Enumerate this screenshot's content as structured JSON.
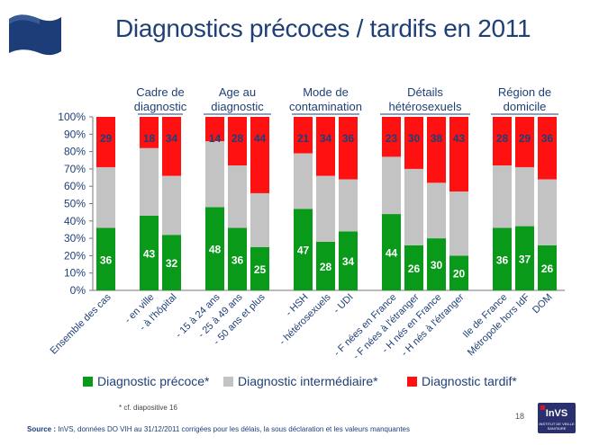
{
  "slide": {
    "title": "Diagnostics précoces / tardifs en 2011",
    "footnote": "* cf. diapositive 16",
    "source_label": "Source :",
    "source_text": " InVS, données DO VIH au 31/12/2011 corrigées pour les délais, la sous déclaration et les valeurs manquantes",
    "page_number": "18",
    "logo_text": "InVS",
    "logo_subtext": "INSTITUT DE VEILLE SANITAIRE"
  },
  "legend": [
    {
      "label": "Diagnostic précoce*",
      "color": "#0a9a1a"
    },
    {
      "label": "Diagnostic intermédiaire*",
      "color": "#c3c3c3"
    },
    {
      "label": "Diagnostic tardif*",
      "color": "#ff1111"
    }
  ],
  "chart_data": {
    "type": "bar",
    "stacked": true,
    "normalized": true,
    "ylim": [
      0,
      100
    ],
    "y_ticks": [
      "0%",
      "10%",
      "20%",
      "30%",
      "40%",
      "50%",
      "60%",
      "70%",
      "80%",
      "90%",
      "100%"
    ],
    "grid": false,
    "groups": [
      {
        "label": "",
        "categories": [
          "Ensemble des cas"
        ]
      },
      {
        "label": "Cadre de diagnostic",
        "categories": [
          "- en ville",
          "- à l'hôpital"
        ]
      },
      {
        "label": "Age au diagnostic",
        "categories": [
          "- 15 à 24 ans",
          "- 25 à 49 ans",
          "- 50 ans et plus"
        ]
      },
      {
        "label": "Mode de contamination",
        "categories": [
          "- HSH",
          "- hétérosexuels",
          "- UDI"
        ]
      },
      {
        "label": "Détails hétérosexuels",
        "categories": [
          "- F nées en France",
          "- F nées à l'étranger",
          "- H nés en France",
          "- H nés à l'étranger"
        ]
      },
      {
        "label": "Région de domicile",
        "categories": [
          "Ile de France",
          "Métropole hors IdF",
          "DOM"
        ]
      }
    ],
    "series": [
      {
        "name": "Diagnostic précoce*",
        "color": "#0a9a1a",
        "values": [
          36,
          43,
          32,
          48,
          36,
          25,
          47,
          28,
          34,
          44,
          26,
          30,
          20,
          36,
          37,
          26
        ]
      },
      {
        "name": "Diagnostic intermédiaire*",
        "color": "#c3c3c3",
        "values": [
          35,
          39,
          34,
          38,
          36,
          31,
          32,
          38,
          30,
          33,
          44,
          32,
          37,
          36,
          34,
          38
        ]
      },
      {
        "name": "Diagnostic tardif*",
        "color": "#ff1111",
        "values": [
          29,
          18,
          34,
          14,
          28,
          44,
          21,
          34,
          36,
          23,
          30,
          38,
          43,
          28,
          29,
          36
        ]
      }
    ],
    "labeled_series": [
      "Diagnostic précoce*",
      "Diagnostic tardif*"
    ]
  }
}
